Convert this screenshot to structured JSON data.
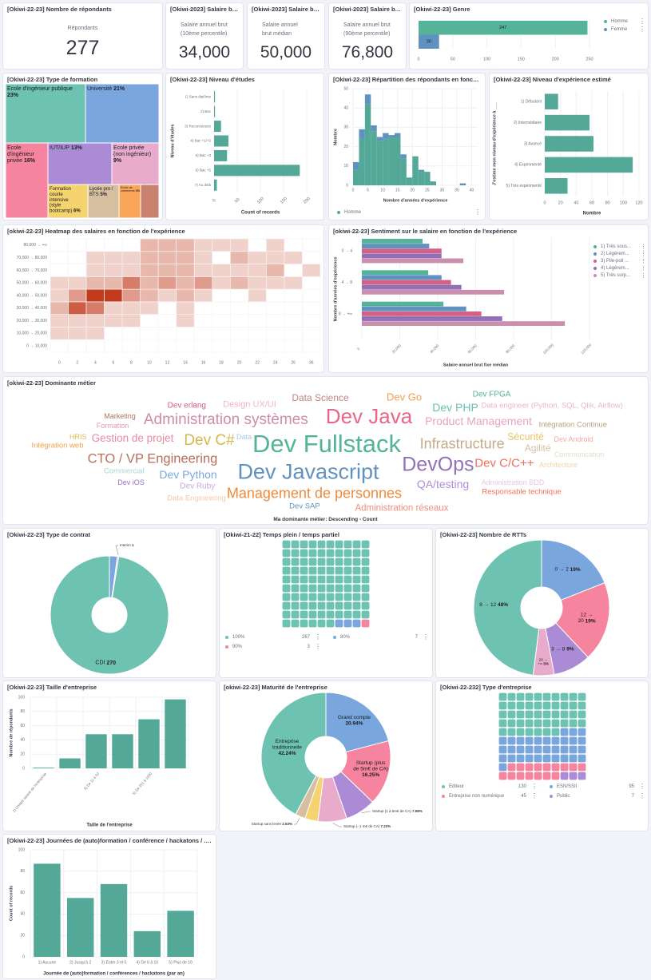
{
  "kpis": [
    {
      "title": "[Okiwi-22-23] Nombre de répondants",
      "label": "Répondants",
      "value": "277"
    },
    {
      "title": "[Okiwi-2023] Salaire brut 1...",
      "label": "Salaire annuel brut (10ème percentile)",
      "value": "34,000"
    },
    {
      "title": "[Okiwi-2023] Salaire brut ...",
      "label": "Salaire annuel brut médian",
      "value": "50,000"
    },
    {
      "title": "[Okiwi-2023] Salaire brut 9...",
      "label": "Salaire annuel brut (90ème percentile)",
      "value": "76,800"
    }
  ],
  "chart_data": [
    {
      "type": "bar",
      "orientation": "horizontal",
      "title": "[Okiwi-22-23] Genre",
      "categories": [
        "Homme",
        "Femme"
      ],
      "values": [
        247,
        30
      ],
      "colors": [
        "#54b399",
        "#6092c0"
      ],
      "xlim": [
        0,
        250
      ],
      "xticks": [
        0,
        50,
        100,
        150,
        200,
        250
      ],
      "legend": "right"
    },
    {
      "type": "treemap",
      "title": "[Okiwi-22-23] Type de formation",
      "items": [
        {
          "label": "Ecole d'ingénieur publique",
          "pct": "23%",
          "value": 23,
          "color": "#6dc2b2"
        },
        {
          "label": "Université",
          "pct": "21%",
          "value": 21,
          "color": "#79a6dd"
        },
        {
          "label": "Ecole d'ingénieur privée",
          "pct": "16%",
          "value": 16,
          "color": "#f6849e"
        },
        {
          "label": "IUT/IUP",
          "pct": "13%",
          "value": 13,
          "color": "#ab8bd6"
        },
        {
          "label": "Ecole privée (non ingénieur)",
          "pct": "9%",
          "value": 9,
          "color": "#e8abcb"
        },
        {
          "label": "Formation courte intensive (style bootcamp)",
          "pct": "6%",
          "value": 6,
          "color": "#f5d36e"
        },
        {
          "label": "Lycée pro / BTS",
          "pct": "5%",
          "value": 5,
          "color": "#d6bf9e"
        },
        {
          "label": "Ecole de commerce",
          "pct": "4%",
          "value": 4,
          "color": "#f9a65a"
        },
        {
          "label": "",
          "pct": "",
          "value": 3,
          "color": "#c98170"
        }
      ]
    },
    {
      "type": "bar",
      "orientation": "horizontal",
      "title": "[Okiwi-22-23] Niveau d'études",
      "categories": [
        "1) Sans diplôme",
        "2) Bac",
        "3) Reconversion",
        "4) Bac +1/+2",
        "5) Bac +3",
        "6) Bac +5",
        "7) Au delà"
      ],
      "values": [
        2,
        2,
        15,
        31,
        28,
        185,
        6
      ],
      "color": "#54a898",
      "xlim": [
        0,
        200
      ],
      "xticks": [
        0,
        50,
        100,
        150,
        200
      ],
      "xlabel": "Count of records",
      "ylabel": "Niveau d'études"
    },
    {
      "type": "bar",
      "stacked": true,
      "title": "[Okiwi-22-23] Répartition des répondants en fonction de l'e...",
      "bin_edges": [
        0,
        2,
        4,
        6,
        8,
        10,
        12,
        14,
        16,
        18,
        20,
        22,
        24,
        26,
        28,
        30,
        32,
        34,
        36,
        38,
        40
      ],
      "series": [
        {
          "name": "Homme",
          "color": "#54a898",
          "values": [
            8,
            24,
            42,
            28,
            23,
            24,
            25,
            25,
            14,
            4,
            15,
            7,
            7,
            2,
            0,
            0,
            0,
            0,
            0,
            0
          ]
        },
        {
          "color": "#6092c0",
          "values": [
            4,
            5,
            5,
            3,
            2,
            3,
            1,
            2,
            2,
            0,
            0,
            1,
            0,
            0,
            0,
            0,
            0,
            0,
            1,
            0
          ]
        }
      ],
      "xlim": [
        0,
        42
      ],
      "ylim": [
        0,
        50
      ],
      "xticks": [
        0,
        5,
        10,
        15,
        20,
        25,
        30,
        35,
        40
      ],
      "yticks": [
        0,
        10,
        20,
        30,
        40,
        50
      ],
      "xlabel": "Nombre d'années d'expérience",
      "ylabel": "Nombre",
      "legend": "bottom"
    },
    {
      "type": "bar",
      "orientation": "horizontal",
      "title": "[Okiwi-22-23] Niveau d'expérience estimé",
      "categories": [
        "1) Débutant",
        "2) Intermédiaire",
        "3) Avancé",
        "4) Expérimenté",
        "5) Très expérimenté"
      ],
      "values": [
        17,
        57,
        62,
        112,
        29
      ],
      "color": "#54a898",
      "xlim": [
        0,
        120
      ],
      "xticks": [
        0,
        20,
        40,
        60,
        80,
        100,
        120
      ],
      "xlabel": "Nombre",
      "ylabel": "J'estime mon niveau d'expérience à ___"
    },
    {
      "type": "heatmap",
      "title": "[okiwi-22-23] Heatmap des salaires en fonction de l'expérience",
      "x": [
        "0",
        "2",
        "4",
        "6",
        "8",
        "10",
        "12",
        "14",
        "16",
        "18",
        "20",
        "22",
        "24",
        "26",
        "36"
      ],
      "y": [
        "0 → 10,000",
        "10,000 → 20,000",
        "20,000 → 30,000",
        "30,000 → 40,000",
        "40,000 → 50,000",
        "50,000 → 60,000",
        "60,000 → 70,000",
        "70,000 → 80,000",
        "80,000 → +∞"
      ],
      "values": [
        [
          0,
          0,
          0,
          0,
          0,
          0,
          0,
          0,
          0,
          0,
          0,
          0,
          0,
          0,
          0
        ],
        [
          1,
          1,
          1,
          0,
          0,
          0,
          0,
          0,
          0,
          0,
          0,
          0,
          0,
          0,
          0
        ],
        [
          1,
          1,
          1,
          1,
          1,
          0,
          0,
          1,
          0,
          0,
          0,
          0,
          0,
          0,
          0
        ],
        [
          2,
          5,
          4,
          1,
          1,
          1,
          0,
          1,
          0,
          0,
          0,
          0,
          0,
          0,
          0
        ],
        [
          1,
          3,
          6,
          6,
          3,
          2,
          1,
          2,
          1,
          0,
          0,
          1,
          0,
          0,
          0
        ],
        [
          1,
          1,
          2,
          2,
          4,
          2,
          3,
          2,
          3,
          1,
          2,
          1,
          1,
          1,
          0
        ],
        [
          0,
          0,
          1,
          1,
          1,
          2,
          2,
          2,
          1,
          1,
          1,
          1,
          2,
          0,
          1
        ],
        [
          0,
          0,
          1,
          1,
          1,
          2,
          2,
          2,
          1,
          0,
          2,
          1,
          1,
          1,
          0
        ],
        [
          0,
          0,
          0,
          0,
          0,
          2,
          2,
          2,
          1,
          1,
          1,
          0,
          1,
          0,
          0
        ]
      ],
      "color_low": "#ffffff",
      "color_high": "#c23b1d"
    },
    {
      "type": "bar",
      "orientation": "horizontal",
      "grouped": true,
      "title": "[okiwi-22-23] Sentiment sur le salaire en fonction de l'expérience",
      "categories": [
        "0 → 4",
        "4 → 8",
        "8 → +∞"
      ],
      "series": [
        {
          "name": "1) Très sous...",
          "color": "#54b399",
          "values": [
            32000,
            35000,
            43000
          ]
        },
        {
          "name": "2) Légèrem...",
          "color": "#6092c0",
          "values": [
            35500,
            42000,
            55000
          ]
        },
        {
          "name": "3) Pile-poil ...",
          "color": "#d36086",
          "values": [
            42000,
            47000,
            63000
          ]
        },
        {
          "name": "4) Légèrem...",
          "color": "#9170b8",
          "values": [
            42000,
            52500,
            74000
          ]
        },
        {
          "name": "5) Très surp...",
          "color": "#ca8eae",
          "values": [
            53500,
            75000,
            107000
          ]
        }
      ],
      "xlim": [
        0,
        120000
      ],
      "xticks": [
        0,
        20000,
        40000,
        60000,
        80000,
        100000,
        120000
      ],
      "xlabel": "Salaire annuel brut fixe médian",
      "ylabel": "Nombre d'années d'expérience",
      "legend": "right"
    },
    {
      "type": "pie",
      "donut": true,
      "title": "[Okiwi-22-23] Type de contrat",
      "slices": [
        {
          "label": "",
          "display": "",
          "value": 6,
          "color": "#79a6dd"
        },
        {
          "label": "Interim",
          "display": "1",
          "value": 1,
          "color": "#e8a0c0"
        },
        {
          "label": "CDI",
          "display": "270",
          "value": 270,
          "color": "#6dc2b2"
        }
      ]
    },
    {
      "type": "waffle",
      "title": "[Okiwi-21-22] Temps plein / temps partiel",
      "items": [
        {
          "label": "100%",
          "value": 267,
          "color": "#6dc2b2"
        },
        {
          "label": "80%",
          "value": 7,
          "color": "#79a6dd"
        },
        {
          "label": "90%",
          "value": 3,
          "color": "#f6849e"
        }
      ]
    },
    {
      "type": "pie",
      "donut": true,
      "title": "[Okiwi-22-23] Nombre de RTTs",
      "slices": [
        {
          "label": "0 → 2",
          "display": "19%",
          "value": 19,
          "color": "#79a6dd"
        },
        {
          "label": "12 → 20",
          "display": "19%",
          "value": 19,
          "color": "#f6849e"
        },
        {
          "label": "3 → 8",
          "display": "9%",
          "value": 9,
          "color": "#ab8bd6"
        },
        {
          "label": "20 → +∞",
          "display": "5%",
          "value": 5,
          "color": "#e8abcb"
        },
        {
          "label": "8 → 12",
          "display": "48%",
          "value": 48,
          "color": "#6dc2b2"
        }
      ]
    },
    {
      "type": "bar",
      "orientation": "vertical",
      "title": "[Okiwi-22-23] Taille d'entreprise",
      "categories": [
        "1) Unique salarié de l'entreprise",
        "",
        "3) De 11 à 50",
        "",
        "5) De 251 à 1000",
        ""
      ],
      "values": [
        1,
        14,
        48,
        48,
        69,
        97
      ],
      "color": "#54a898",
      "ylim": [
        0,
        100
      ],
      "yticks": [
        0,
        20,
        40,
        60,
        80,
        100
      ],
      "xlabel": "Taille de l'entreprise",
      "ylabel": "Nombre de répondants"
    },
    {
      "type": "pie",
      "donut": true,
      "title": "[okiwi-22-23] Maturité de l'entreprise",
      "slices": [
        {
          "label": "Grand compte",
          "display": "20.94%",
          "value": 20.94,
          "color": "#79a6dd"
        },
        {
          "label": "Startup (plus de 5m€ de CA)",
          "display": "16.25%",
          "value": 16.25,
          "color": "#f6849e"
        },
        {
          "label": "Startup (1 à 5m€ de CA)",
          "display": "7.58%",
          "value": 7.58,
          "color": "#ab8bd6"
        },
        {
          "label": "Startup (- 1 m€ de CA)",
          "display": "7.22%",
          "value": 7.22,
          "color": "#e8abcb"
        },
        {
          "label": "",
          "display": "",
          "value": 3.24,
          "color": "#f5d36e"
        },
        {
          "label": "Startup sans levée",
          "display": "2.53%",
          "value": 2.53,
          "color": "#d6bf9e"
        },
        {
          "label": "Entreprise traditionnelle",
          "display": "42.24%",
          "value": 42.24,
          "color": "#6dc2b2"
        }
      ]
    },
    {
      "type": "waffle",
      "title": "[Okiwi-22-232] Type d'entreprise",
      "items": [
        {
          "label": "Editeur",
          "value": 130,
          "color": "#6dc2b2"
        },
        {
          "label": "ESN/SSII",
          "value": 95,
          "color": "#79a6dd"
        },
        {
          "label": "Entreprise non numérique",
          "value": 45,
          "color": "#f6849e"
        },
        {
          "label": "Public",
          "value": 7,
          "color": "#ab8bd6"
        }
      ]
    },
    {
      "type": "bar",
      "orientation": "vertical",
      "title": "[Okiwi-22-23] Journées de (auto)formation / conférence / hackatons / ... par an",
      "categories": [
        "1) Aucune",
        "2) Jusqu'à 2",
        "3) Entre 3 et 5",
        "4) De 6 à 10",
        "5) Plus de 10"
      ],
      "values": [
        87,
        55,
        68,
        24,
        43
      ],
      "color": "#54a898",
      "ylim": [
        0,
        100
      ],
      "yticks": [
        0,
        20,
        40,
        60,
        80,
        100
      ],
      "xlabel": "Journée de (auto)formation / conférences / hackatons (par an)",
      "ylabel": "Count of records"
    }
  ],
  "wordcloud": {
    "title": "[okiwi-22-23] Dominante métier",
    "footer": "Ma dominante métier: Descending - Count",
    "words": [
      {
        "text": "Dev erlang",
        "color": "#d6578a"
      },
      {
        "text": "Design UX/UI",
        "color": "#f0b6c9"
      },
      {
        "text": "Data Science",
        "color": "#c0877a"
      },
      {
        "text": "Dev FPGA",
        "color": "#54b399"
      },
      {
        "text": "Dev Go",
        "color": "#f0a04b"
      },
      {
        "text": "Data engineer (Python, SQL, Qlik, Airflow)",
        "color": "#eab6c6"
      },
      {
        "text": "Marketing",
        "color": "#b2745f"
      },
      {
        "text": "Administration systèmes",
        "color": "#d08bab"
      },
      {
        "text": "Dev Java",
        "color": "#e7668a"
      },
      {
        "text": "Product Management",
        "color": "#e8a3c2"
      },
      {
        "text": "Intégration Continue",
        "color": "#b7a07c"
      },
      {
        "text": "Formation",
        "color": "#e795b8"
      },
      {
        "text": "Data",
        "color": "#a6c8eb"
      },
      {
        "text": "Dev PHP",
        "color": "#6dc1b0"
      },
      {
        "text": "Sécurité",
        "color": "#e7c766"
      },
      {
        "text": "Dev Android",
        "color": "#f7a8a8"
      },
      {
        "text": "Gestion de projet",
        "color": "#e88ba2"
      },
      {
        "text": "Dev C#",
        "color": "#d6b84a"
      },
      {
        "text": "Dev Fullstack",
        "color": "#54b399"
      },
      {
        "text": "Infrastructure",
        "color": "#c5a989"
      },
      {
        "text": "Agilité",
        "color": "#d6c0a3"
      },
      {
        "text": "Intégration web",
        "color": "#f0a04b"
      },
      {
        "text": "HRIS",
        "color": "#e0b952"
      },
      {
        "text": "Communication",
        "color": "#e6dccd"
      },
      {
        "text": "CTO / VP Engineering",
        "color": "#b86e5a"
      },
      {
        "text": "Dev Javascript",
        "color": "#6092c0"
      },
      {
        "text": "DevOps",
        "color": "#9170b8"
      },
      {
        "text": "Dev C/C++",
        "color": "#f26d5b"
      },
      {
        "text": "Architecture",
        "color": "#f2d3a8"
      },
      {
        "text": "Commercial",
        "color": "#a8d8cf"
      },
      {
        "text": "Dev Python",
        "color": "#79a9dd"
      },
      {
        "text": "Dev iOS",
        "color": "#9d6ac2"
      },
      {
        "text": "Dev Ruby",
        "color": "#c7a9e0"
      },
      {
        "text": "Management de personnes",
        "color": "#ef8a3a"
      },
      {
        "text": "QA/testing",
        "color": "#b08ed6"
      },
      {
        "text": "Administration BDD",
        "color": "#e8c4e8"
      },
      {
        "text": "Responsable technique",
        "color": "#f26d5b"
      },
      {
        "text": "Data Engineering",
        "color": "#f6c9a5"
      },
      {
        "text": "Dev SAP",
        "color": "#6092c0"
      },
      {
        "text": "Administration réseaux",
        "color": "#f08f7e"
      }
    ]
  },
  "icons": {
    "legend_menu": "vertical-ellipsis-icon"
  }
}
